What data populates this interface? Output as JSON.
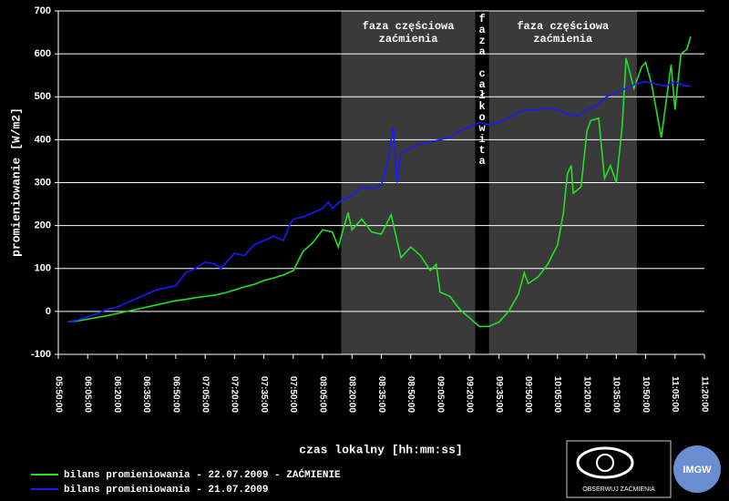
{
  "chart_data": {
    "type": "line",
    "ylabel": "promieniowanie [W/m2]",
    "xlabel": "czas lokalny [hh:mm:ss]",
    "xlim": [
      "05:50:00",
      "11:20:00"
    ],
    "xticks": [
      "05:50:00",
      "06:05:00",
      "06:20:00",
      "06:35:00",
      "06:50:00",
      "07:05:00",
      "07:20:00",
      "07:35:00",
      "07:50:00",
      "08:05:00",
      "08:20:00",
      "08:35:00",
      "08:50:00",
      "09:05:00",
      "09:20:00",
      "09:35:00",
      "09:50:00",
      "10:05:00",
      "10:20:00",
      "10:35:00",
      "10:50:00",
      "11:05:00",
      "11:20:00"
    ],
    "ylim": [
      -100,
      700
    ],
    "yticks": [
      -100,
      0,
      100,
      200,
      300,
      400,
      500,
      600,
      700
    ],
    "grid": true,
    "regions": [
      {
        "label": [
          "faza częściowa",
          "zaćmienia"
        ],
        "start": "08:14:30",
        "end": "09:23:00",
        "color": "#3a3a3a"
      },
      {
        "label": "faza całkowita",
        "start": "09:23:00",
        "end": "09:30:00",
        "color": "#000000",
        "vertical": true
      },
      {
        "label": [
          "faza częściowa",
          "zaćmienia"
        ],
        "start": "09:30:00",
        "end": "10:45:30",
        "color": "#3a3a3a"
      }
    ],
    "series": [
      {
        "name": "bilans promieniowania - 22.07.2009 - ZAĆMIENIE",
        "color": "#22e022",
        "x": [
          "05:55:00",
          "06:00:00",
          "06:05:00",
          "06:10:00",
          "06:15:00",
          "06:20:00",
          "06:25:00",
          "06:30:00",
          "06:35:00",
          "06:40:00",
          "06:45:00",
          "06:50:00",
          "06:55:00",
          "07:00:00",
          "07:05:00",
          "07:10:00",
          "07:15:00",
          "07:20:00",
          "07:25:00",
          "07:30:00",
          "07:35:00",
          "07:40:00",
          "07:45:00",
          "07:50:00",
          "07:55:00",
          "08:00:00",
          "08:05:00",
          "08:10:00",
          "08:13:00",
          "08:18:00",
          "08:20:00",
          "08:25:00",
          "08:30:00",
          "08:35:00",
          "08:40:00",
          "08:45:00",
          "08:50:00",
          "08:55:00",
          "09:00:00",
          "09:03:00",
          "09:05:00",
          "09:10:00",
          "09:15:00",
          "09:20:00",
          "09:25:00",
          "09:30:00",
          "09:35:00",
          "09:40:00",
          "09:45:00",
          "09:48:00",
          "09:50:00",
          "09:55:00",
          "10:00:00",
          "10:05:00",
          "10:08:00",
          "10:10:00",
          "10:12:00",
          "10:13:00",
          "10:17:00",
          "10:20:00",
          "10:22:00",
          "10:26:00",
          "10:29:00",
          "10:32:00",
          "10:35:00",
          "10:38:00",
          "10:40:00",
          "10:44:00",
          "10:48:00",
          "10:50:00",
          "10:53:00",
          "10:58:00",
          "11:03:00",
          "11:05:00",
          "11:08:00",
          "11:11:00",
          "11:13:00"
        ],
        "values": [
          -24,
          -22,
          -18,
          -14,
          -10,
          -5,
          0,
          5,
          10,
          15,
          20,
          25,
          28,
          32,
          35,
          38,
          43,
          50,
          57,
          63,
          72,
          78,
          85,
          95,
          140,
          160,
          190,
          185,
          150,
          230,
          190,
          215,
          185,
          180,
          225,
          125,
          150,
          130,
          95,
          110,
          45,
          35,
          5,
          -15,
          -35,
          -35,
          -25,
          0,
          40,
          90,
          65,
          80,
          110,
          155,
          230,
          320,
          340,
          275,
          290,
          420,
          445,
          450,
          310,
          340,
          300,
          430,
          590,
          520,
          570,
          580,
          530,
          405,
          575,
          470,
          600,
          610,
          640
        ]
      },
      {
        "name": "bilans promieniowania - 21.07.2009",
        "color": "#1a1aff",
        "x": [
          "05:55:00",
          "06:00:00",
          "06:05:00",
          "06:10:00",
          "06:15:00",
          "06:20:00",
          "06:25:00",
          "06:30:00",
          "06:35:00",
          "06:40:00",
          "06:45:00",
          "06:50:00",
          "06:55:00",
          "07:00:00",
          "07:05:00",
          "07:10:00",
          "07:13:00",
          "07:15:00",
          "07:20:00",
          "07:25:00",
          "07:30:00",
          "07:35:00",
          "07:40:00",
          "07:45:00",
          "07:48:00",
          "07:50:00",
          "07:55:00",
          "08:00:00",
          "08:05:00",
          "08:08:00",
          "08:10:00",
          "08:15:00",
          "08:20:00",
          "08:25:00",
          "08:30:00",
          "08:35:00",
          "08:38:00",
          "08:41:00",
          "08:43:00",
          "08:45:00",
          "08:50:00",
          "08:55:00",
          "09:00:00",
          "09:05:00",
          "09:10:00",
          "09:15:00",
          "09:20:00",
          "09:25:00",
          "09:30:00",
          "09:35:00",
          "09:40:00",
          "09:45:00",
          "09:50:00",
          "09:55:00",
          "10:00:00",
          "10:05:00",
          "10:10:00",
          "10:15:00",
          "10:20:00",
          "10:25:00",
          "10:30:00",
          "10:35:00",
          "10:40:00",
          "10:45:00",
          "10:50:00",
          "10:55:00",
          "11:00:00",
          "11:05:00",
          "11:10:00",
          "11:13:00"
        ],
        "values": [
          -24,
          -20,
          -12,
          -5,
          5,
          10,
          20,
          30,
          40,
          50,
          55,
          60,
          90,
          100,
          115,
          110,
          100,
          110,
          135,
          130,
          155,
          165,
          175,
          165,
          200,
          215,
          220,
          230,
          240,
          255,
          240,
          260,
          270,
          290,
          285,
          295,
          340,
          430,
          300,
          370,
          380,
          390,
          395,
          400,
          405,
          420,
          430,
          440,
          435,
          440,
          450,
          465,
          470,
          470,
          475,
          470,
          460,
          455,
          470,
          480,
          500,
          510,
          520,
          530,
          535,
          530,
          525,
          535,
          525,
          525
        ]
      }
    ],
    "logos": [
      "OBSERWUJ ZAĆMIENIA",
      "IMGW"
    ]
  }
}
